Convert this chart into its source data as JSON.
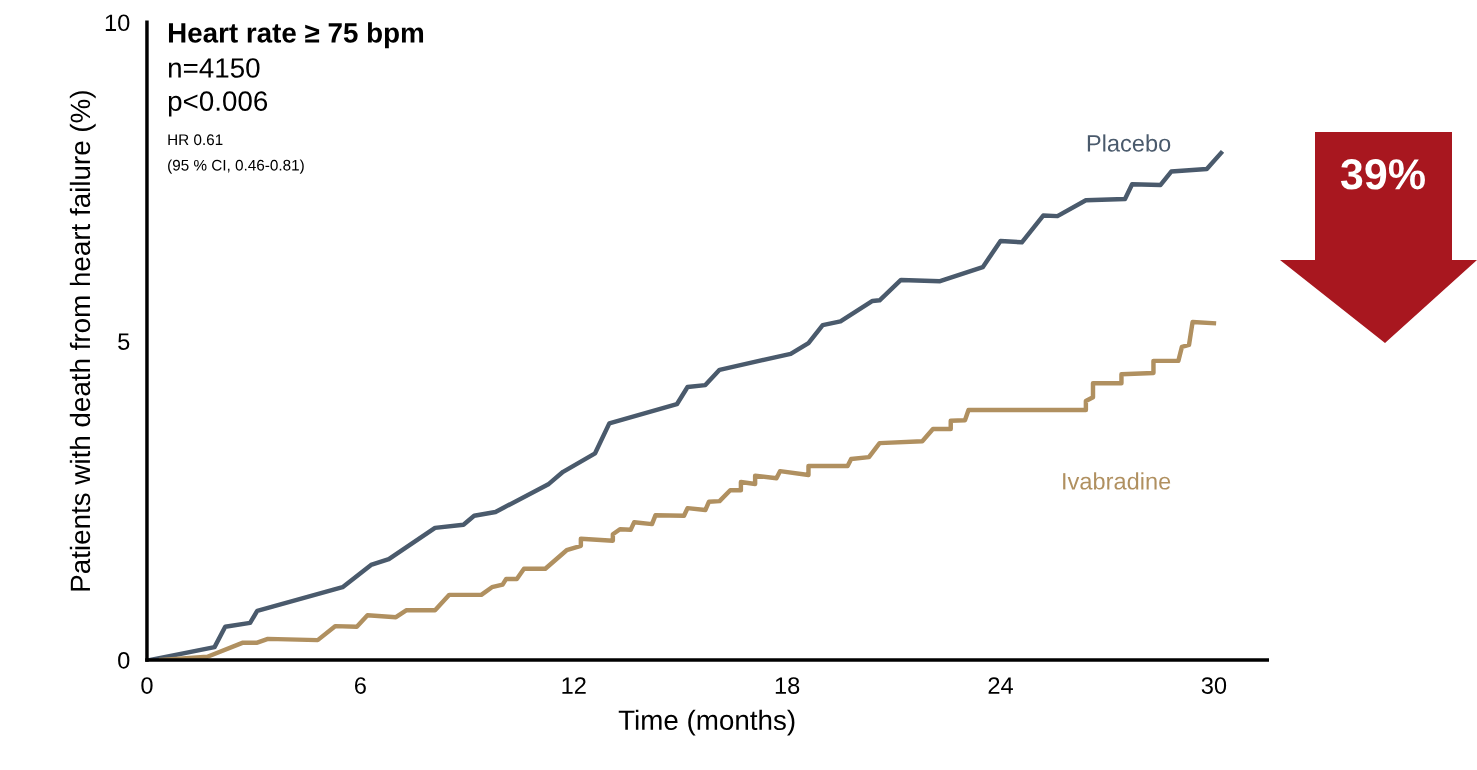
{
  "chart_data": {
    "type": "line",
    "title": "Heart rate ≥ 75 bpm",
    "xlabel": "Time (months)",
    "ylabel": "Patients with death from heart failure (%)",
    "annotations": [
      "n=4150",
      "p<0.006",
      "HR 0.61",
      "(95 % CI, 0.46-0.81)",
      "39%"
    ],
    "xlim": [
      0,
      31.5
    ],
    "ylim": [
      0,
      10
    ],
    "xticks": [
      0,
      6,
      12,
      18,
      24,
      30
    ],
    "yticks": [
      0,
      5,
      10
    ],
    "grid": false,
    "legend": false,
    "marker": "none",
    "line_style": "solid",
    "series": [
      {
        "name": "Placebo",
        "color": "#4a5a6c",
        "x": [
          0.1,
          1.9,
          2.2,
          2.9,
          3.1,
          5.5,
          6.3,
          6.8,
          8.1,
          8.9,
          9.2,
          9.8,
          11.3,
          11.7,
          12.6,
          13.0,
          14.9,
          15.2,
          15.7,
          16.1,
          18.1,
          18.6,
          19.0,
          19.5,
          20.4,
          20.6,
          21.2,
          22.3,
          23.5,
          24.0,
          24.6,
          25.2,
          25.6,
          26.4,
          27.5,
          27.7,
          28.5,
          28.8,
          29.8,
          30.2
        ],
        "values": [
          0.0,
          0.2,
          0.52,
          0.58,
          0.77,
          1.14,
          1.49,
          1.58,
          2.07,
          2.12,
          2.26,
          2.32,
          2.76,
          2.95,
          3.24,
          3.71,
          4.01,
          4.28,
          4.31,
          4.55,
          4.8,
          4.97,
          5.25,
          5.31,
          5.63,
          5.64,
          5.96,
          5.94,
          6.16,
          6.57,
          6.55,
          6.97,
          6.96,
          7.21,
          7.23,
          7.46,
          7.45,
          7.66,
          7.7,
          7.95
        ]
      },
      {
        "name": "Ivabradine",
        "color": "#b09060",
        "x": [
          0.4,
          1.7,
          2.7,
          3.1,
          3.4,
          4.8,
          5.3,
          5.9,
          6.2,
          7.0,
          7.3,
          8.1,
          8.5,
          9.4,
          9.7,
          10.0,
          10.1,
          10.4,
          10.6,
          11.2,
          11.8,
          12.2,
          12.2,
          13.1,
          13.1,
          13.3,
          13.6,
          13.7,
          14.2,
          14.3,
          15.1,
          15.2,
          15.7,
          15.8,
          16.1,
          16.4,
          16.7,
          16.7,
          17.1,
          17.1,
          17.7,
          17.8,
          18.6,
          18.6,
          19.7,
          19.8,
          20.3,
          20.6,
          21.8,
          22.1,
          22.6,
          22.6,
          23.0,
          23.1,
          26.4,
          26.4,
          26.6,
          26.6,
          27.4,
          27.4,
          28.3,
          28.3,
          29.0,
          29.1,
          29.3,
          29.4,
          30.0
        ],
        "values": [
          0.0,
          0.05,
          0.27,
          0.27,
          0.33,
          0.31,
          0.53,
          0.52,
          0.7,
          0.67,
          0.78,
          0.78,
          1.02,
          1.02,
          1.14,
          1.18,
          1.27,
          1.27,
          1.43,
          1.43,
          1.72,
          1.79,
          1.9,
          1.87,
          1.97,
          2.05,
          2.04,
          2.16,
          2.13,
          2.27,
          2.26,
          2.38,
          2.35,
          2.48,
          2.49,
          2.66,
          2.66,
          2.79,
          2.76,
          2.89,
          2.85,
          2.96,
          2.9,
          3.04,
          3.04,
          3.15,
          3.18,
          3.4,
          3.43,
          3.62,
          3.62,
          3.75,
          3.76,
          3.92,
          3.92,
          4.06,
          4.12,
          4.34,
          4.34,
          4.48,
          4.5,
          4.69,
          4.69,
          4.91,
          4.94,
          5.3,
          5.28
        ]
      }
    ]
  }
}
